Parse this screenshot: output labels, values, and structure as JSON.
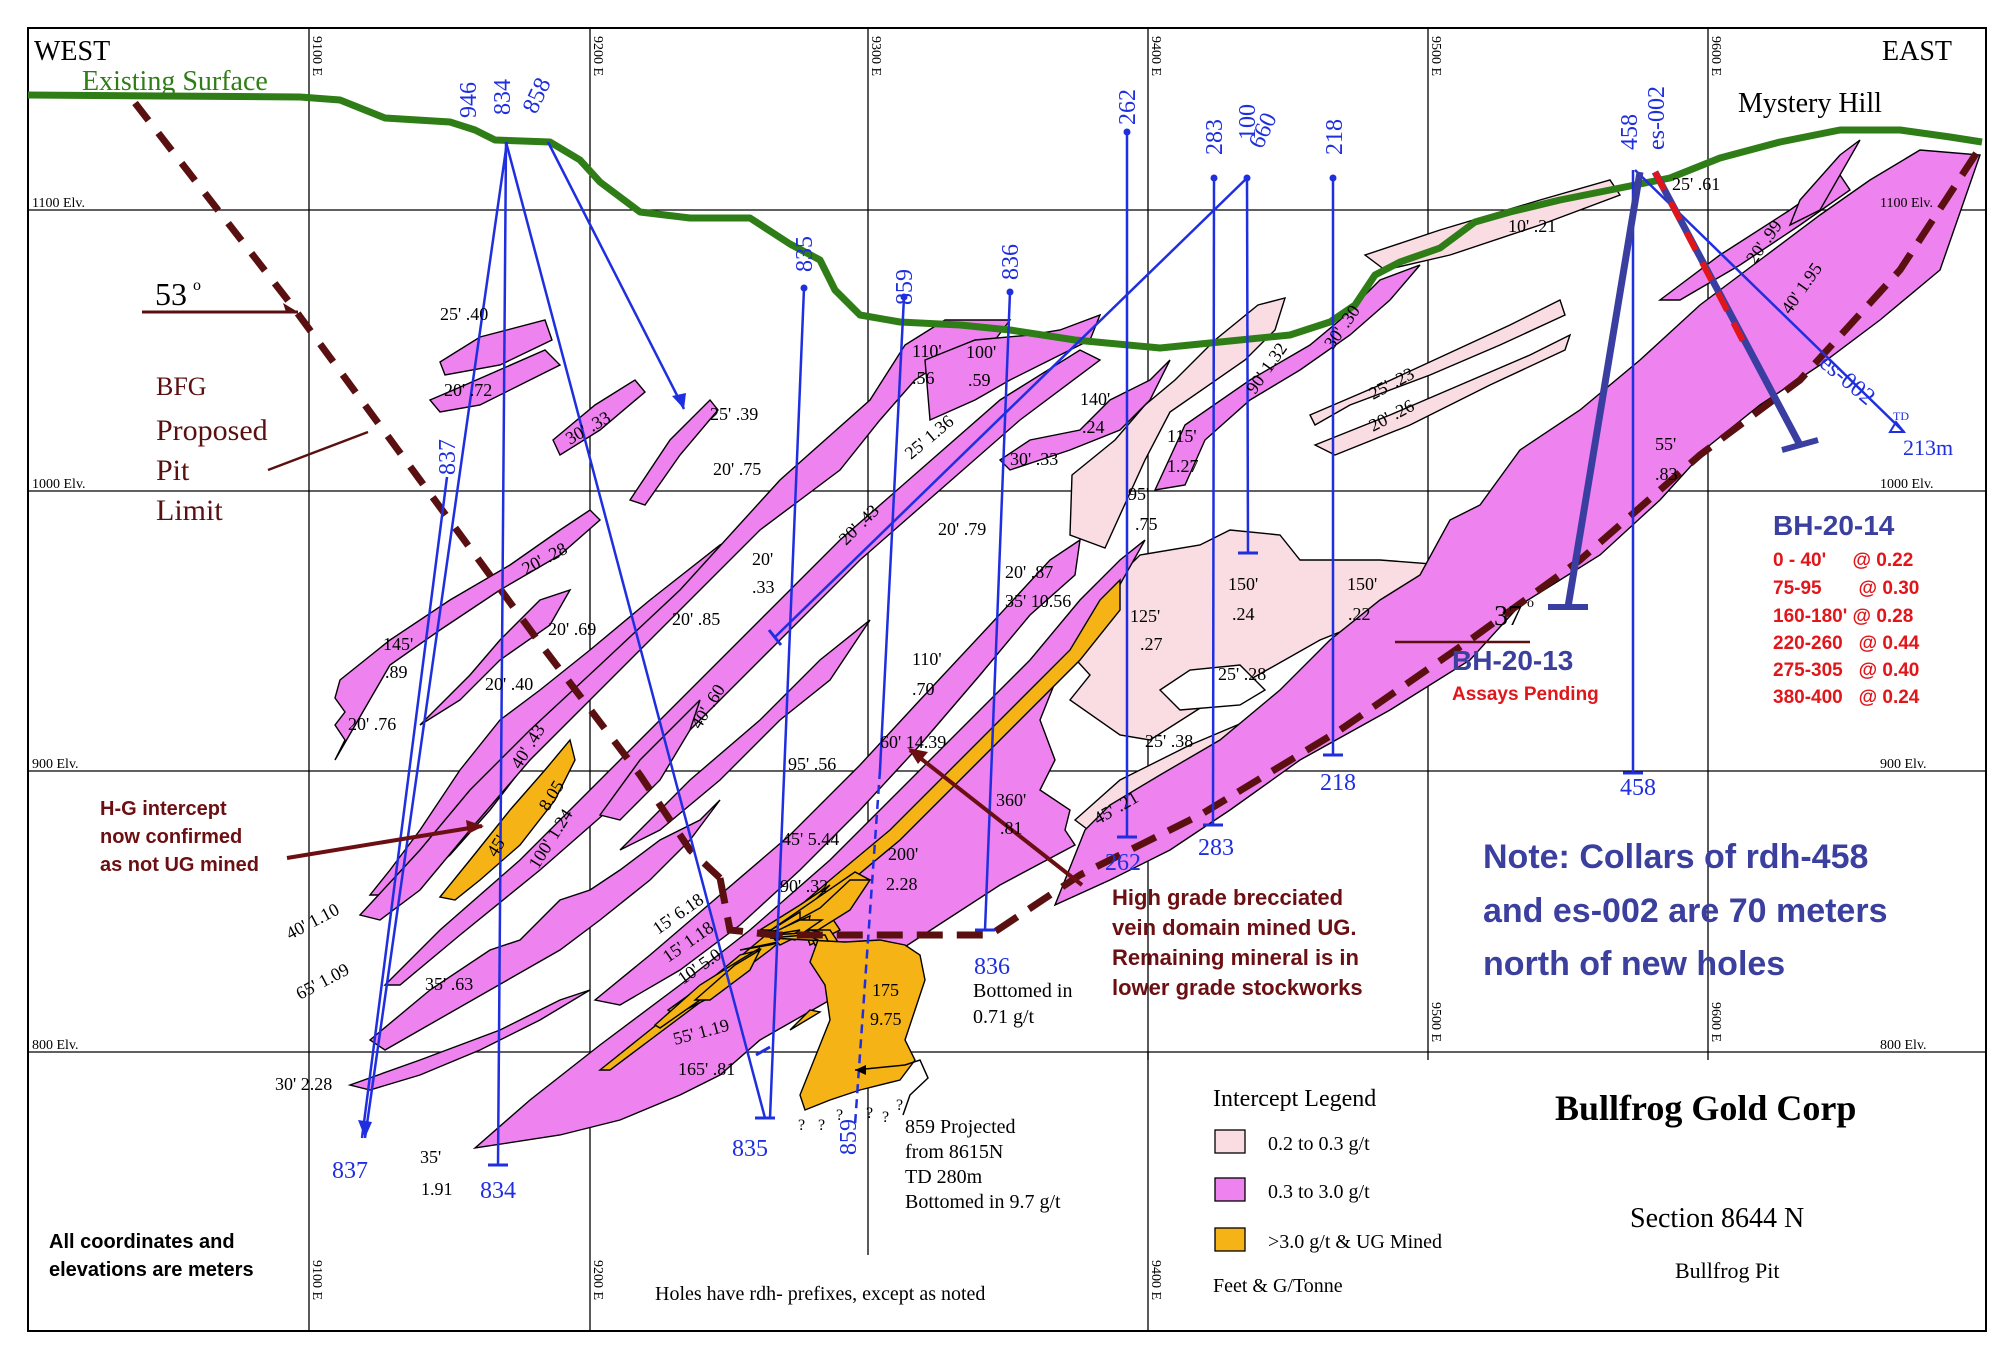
{
  "header": {
    "west": "WEST",
    "east": "EAST"
  },
  "surface": {
    "label": "Existing Surface",
    "mystery_hill": "Mystery Hill"
  },
  "grid": {
    "elevations": [
      "1100 Elv.",
      "1000 Elv.",
      "900 Elv.",
      "800 Elv."
    ],
    "eastings_top": [
      "9100 E",
      "9200 E",
      "9300 E",
      "9400 E",
      "9500 E",
      "9600 E"
    ],
    "eastings_bottom": [
      "9100 E",
      "9200 E",
      "9400 E"
    ],
    "eastings_mid": [
      "9500 E",
      "9600 E"
    ]
  },
  "pit": {
    "angle": "53",
    "line1": "BFG",
    "line2": "Proposed",
    "line3": "Pit",
    "line4": "Limit"
  },
  "holes": {
    "h946": "946",
    "h834": "834",
    "h858": "858",
    "h835": "835",
    "h859": "859",
    "h836": "836",
    "h262": "262",
    "h283": "283",
    "h100": "100",
    "h660": "660",
    "h218": "218",
    "h458": "458",
    "hes002": "es-002",
    "h837": "837",
    "b837": "837",
    "b834": "834",
    "b835": "835",
    "b859": "859",
    "b836": "836",
    "b262": "262",
    "b283": "283",
    "b218": "218",
    "b458": "458",
    "es002_trace": "es-002",
    "td": "TD",
    "td_depth": "213m"
  },
  "intercepts": [
    "25' .40",
    "20' .72",
    "30' .33",
    "25' .39",
    "20' .75",
    "20' .28",
    "145'",
    ".89",
    "20' .69",
    "20' .40",
    "20' .76",
    "40' .43",
    "8.05",
    "100' 1.24",
    "45'",
    "40' 1.10",
    "65' 1.09",
    "35' .63",
    "30' 2.28",
    "35'",
    "1.91",
    "20' .85",
    "20'",
    ".33",
    "40' .60",
    "20' .43",
    "25' 1.36",
    "110'",
    ".56",
    "100'",
    ".59",
    "30' .33",
    "140'",
    ".24",
    "115'",
    "1.27",
    "90' 1.32",
    "30' .30",
    "25' .23",
    "20' .26",
    "10' .21",
    "25' .61",
    "20' .99",
    "40' 1.95",
    "55'",
    ".83",
    "95'",
    ".75",
    "20' .79",
    "20' .87",
    "35' 10.56",
    "110'",
    ".70",
    "125'",
    ".27",
    "150'",
    ".24",
    "150'",
    ".22",
    "25' .28",
    "25' .38",
    "60' 14.39",
    "95' .56",
    "45' 5.44",
    "360'",
    ".81",
    "45' .21",
    "200'",
    "2.28",
    "90' .32",
    "15' 6.18",
    "15' 1.18",
    "10' 5.0",
    "175",
    "9.75",
    "55' 1.19",
    "165' .81"
  ],
  "annotations": {
    "hg_intercept": [
      "H-G intercept",
      "now confirmed",
      "as not UG mined"
    ],
    "hg_breccia": [
      "High grade brecciated",
      "vein domain mined UG.",
      "Remaining mineral is in",
      "lower grade stockworks"
    ],
    "bottomed_836": [
      "Bottomed in",
      "0.71 g/t"
    ],
    "projected_859": [
      "859 Projected",
      "from 8615N",
      "TD 280m",
      "Bottomed in 9.7 g/t"
    ],
    "bh2013_angle": "37",
    "bh2013": "BH-20-13",
    "bh2013_status": "Assays Pending",
    "note": [
      "Note: Collars of rdh-458",
      "and es-002 are 70 meters",
      "north of new holes"
    ],
    "coords": [
      "All coordinates and",
      "elevations are meters"
    ],
    "prefix_note": "Holes have rdh- prefixes, except as noted"
  },
  "bh2014": {
    "title": "BH-20-14",
    "assays": [
      "0 - 40'     @ 0.22",
      "75-95       @ 0.30",
      "160-180' @ 0.28",
      "220-260   @ 0.44",
      "275-305   @ 0.40",
      "380-400   @ 0.24"
    ]
  },
  "legend": {
    "title": "Intercept Legend",
    "items": [
      {
        "label": "0.2 to 0.3 g/t",
        "color": "#f9dde2"
      },
      {
        "label": "0.3 to 3.0 g/t",
        "color": "#ee82ee"
      },
      {
        "label": ">3.0 g/t & UG Mined",
        "color": "#f5b316"
      }
    ],
    "units": "Feet & G/Tonne"
  },
  "title_block": {
    "company": "Bullfrog Gold Corp",
    "section": "Section 8644  N",
    "pit": "Bullfrog Pit"
  },
  "colors": {
    "surface": "#2f7d16",
    "hole": "#1f2fe0",
    "bh_hole": "#3a3ea0",
    "annotation": "#6b0f12",
    "note": "#3b3f9e",
    "assay": "#e0161b",
    "high_grade": "#f5b316",
    "mid_grade": "#ee82ee",
    "low_grade": "#f9dde2"
  }
}
